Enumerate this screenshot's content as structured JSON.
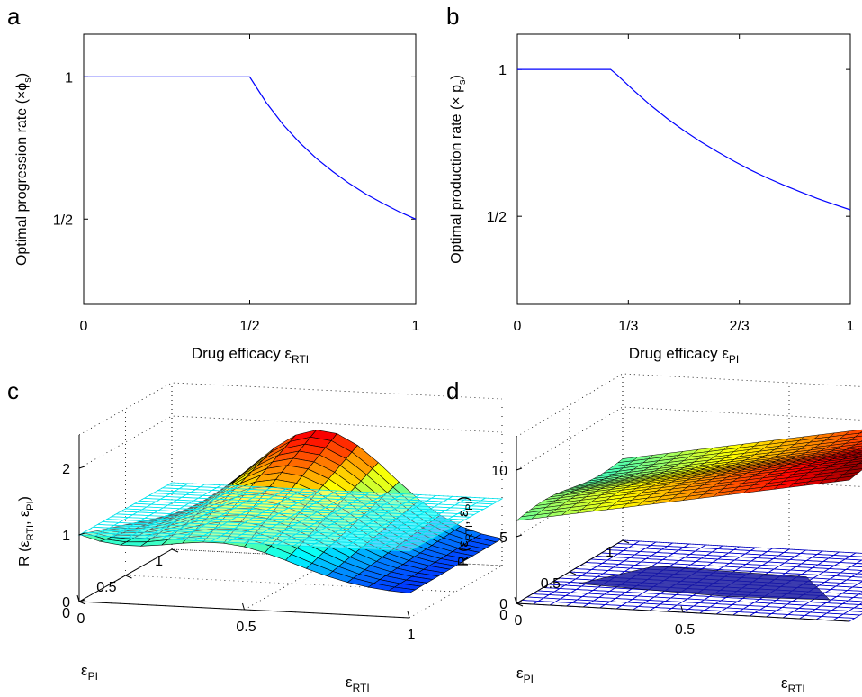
{
  "panels": {
    "a": {
      "letter": "a"
    },
    "b": {
      "letter": "b"
    },
    "c": {
      "letter": "c"
    },
    "d": {
      "letter": "d"
    }
  },
  "chart_data": [
    {
      "id": "a",
      "type": "line",
      "ylabel_main": "Optimal progression rate (×ϕ",
      "ylabel_sub": "s",
      "ylabel_end": ")",
      "xlabel_main": "Drug efficacy ε",
      "xlabel_sub": "RTI",
      "xlim": [
        0,
        1
      ],
      "ylim": [
        0.2,
        1.15
      ],
      "xticks": [
        {
          "value": 0,
          "label": "0"
        },
        {
          "value": 0.5,
          "label": "1/2"
        },
        {
          "value": 1,
          "label": "1"
        }
      ],
      "yticks": [
        {
          "value": 0.5,
          "label": "1/2"
        },
        {
          "value": 1,
          "label": "1"
        }
      ],
      "color": "#0000ff",
      "x": [
        0,
        0.1,
        0.2,
        0.3,
        0.4,
        0.5,
        0.55,
        0.6,
        0.65,
        0.7,
        0.75,
        0.8,
        0.85,
        0.9,
        0.95,
        1.0
      ],
      "y": [
        1,
        1,
        1,
        1,
        1,
        1,
        0.909,
        0.833,
        0.769,
        0.714,
        0.667,
        0.625,
        0.588,
        0.556,
        0.526,
        0.5
      ]
    },
    {
      "id": "b",
      "type": "line",
      "ylabel_main": "Optimal production rate (× p",
      "ylabel_sub": "s",
      "ylabel_end": ")",
      "xlabel_main": "Drug efficacy ε",
      "xlabel_sub": "PI",
      "xlim": [
        0,
        1
      ],
      "ylim": [
        0.2,
        1.12
      ],
      "xticks": [
        {
          "value": 0,
          "label": "0"
        },
        {
          "value": 0.3333,
          "label": "1/3"
        },
        {
          "value": 0.6667,
          "label": "2/3"
        },
        {
          "value": 1,
          "label": "1"
        }
      ],
      "yticks": [
        {
          "value": 0.5,
          "label": "1/2"
        },
        {
          "value": 1,
          "label": "1"
        }
      ],
      "color": "#0000ff",
      "x": [
        0,
        0.1,
        0.2,
        0.28,
        0.3,
        0.35,
        0.4,
        0.45,
        0.5,
        0.55,
        0.6,
        0.65,
        0.7,
        0.75,
        0.8,
        0.85,
        0.9,
        0.95,
        1.0
      ],
      "y": [
        1,
        1,
        1,
        1,
        0.981,
        0.928,
        0.878,
        0.833,
        0.792,
        0.754,
        0.72,
        0.688,
        0.658,
        0.631,
        0.606,
        0.583,
        0.561,
        0.541,
        0.522
      ]
    },
    {
      "id": "c",
      "type": "surface3d",
      "zlabel_main": "R (ε",
      "zlabel_sub1": "RTI",
      "zlabel_mid": ", ε",
      "zlabel_sub2": "PI",
      "zlabel_end": ")",
      "xlabel_main": "ε",
      "xlabel_sub": "RTI",
      "ylabel_main": "ε",
      "ylabel_sub": "PI",
      "xticks": [
        {
          "value": 0,
          "label": "0"
        },
        {
          "value": 0.5,
          "label": "0.5"
        },
        {
          "value": 1,
          "label": "1"
        }
      ],
      "yticks": [
        {
          "value": 0,
          "label": "0"
        },
        {
          "value": 0.5,
          "label": "0.5"
        },
        {
          "value": 1,
          "label": "1"
        }
      ],
      "zticks": [
        {
          "value": 0,
          "label": "0"
        },
        {
          "value": 1,
          "label": "1"
        },
        {
          "value": 2,
          "label": "2"
        }
      ],
      "zlim": [
        0,
        2.5
      ],
      "plane_level": 1,
      "plane_color": "#00e5ee",
      "surface": "bump",
      "grid": "dotted"
    },
    {
      "id": "d",
      "type": "surface3d",
      "zlabel_main": "R (ε",
      "zlabel_sub1": "RTI",
      "zlabel_mid": ", ε",
      "zlabel_sub2": "PI",
      "zlabel_end": ")",
      "xlabel_main": "ε",
      "xlabel_sub": "RTI",
      "ylabel_main": "ε",
      "ylabel_sub": "PI",
      "xticks": [
        {
          "value": 0,
          "label": "0"
        },
        {
          "value": 0.5,
          "label": "0.5"
        }
      ],
      "yticks": [
        {
          "value": 0,
          "label": "0"
        },
        {
          "value": 0.5,
          "label": "0.5"
        },
        {
          "value": 1,
          "label": "1"
        }
      ],
      "zticks": [
        {
          "value": 0,
          "label": "0"
        },
        {
          "value": 5,
          "label": "5"
        },
        {
          "value": 10,
          "label": "10"
        }
      ],
      "zlim": [
        0,
        12.5
      ],
      "plane_level": 0,
      "plane_color": "#0000cc",
      "surface": "ramp",
      "grid": "dotted"
    }
  ]
}
